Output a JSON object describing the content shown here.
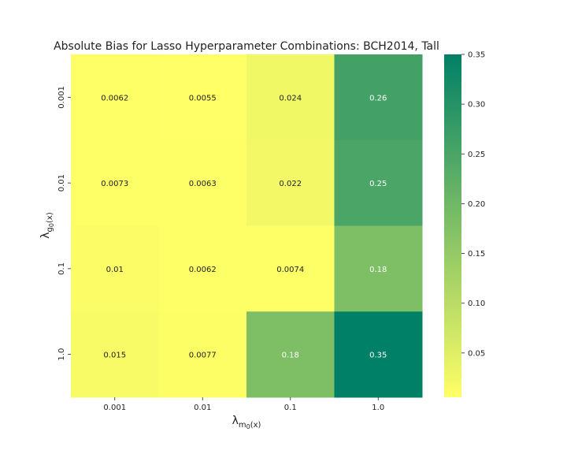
{
  "chart_data": {
    "type": "heatmap",
    "title": "Absolute Bias for Lasso Hyperparameter Combinations: BCH2014, Tall",
    "xlabel_symbol": "λ",
    "xlabel_sub": "m",
    "xlabel_subsub": "0",
    "xlabel_tail": "(x)",
    "ylabel_symbol": "λ",
    "ylabel_sub": "g",
    "ylabel_subsub": "0",
    "ylabel_tail": "(x)",
    "x_categories": [
      "0.001",
      "0.01",
      "0.1",
      "1.0"
    ],
    "y_categories": [
      "0.001",
      "0.01",
      "0.1",
      "1.0"
    ],
    "values": [
      [
        0.0062,
        0.0055,
        0.024,
        0.26
      ],
      [
        0.0073,
        0.0063,
        0.022,
        0.25
      ],
      [
        0.01,
        0.0062,
        0.0074,
        0.18
      ],
      [
        0.015,
        0.0077,
        0.18,
        0.35
      ]
    ],
    "cell_labels": [
      [
        "0.0062",
        "0.0055",
        "0.024",
        "0.26"
      ],
      [
        "0.0073",
        "0.0063",
        "0.022",
        "0.25"
      ],
      [
        "0.01",
        "0.0062",
        "0.0074",
        "0.18"
      ],
      [
        "0.015",
        "0.0077",
        "0.18",
        "0.35"
      ]
    ],
    "colormap": "summer_r",
    "color_low": "#ffff66",
    "color_high": "#008066",
    "vmin": 0.0055,
    "vmax": 0.35,
    "colorbar_ticks": [
      "0.05",
      "0.10",
      "0.15",
      "0.20",
      "0.25",
      "0.30",
      "0.35"
    ],
    "grid": false
  }
}
